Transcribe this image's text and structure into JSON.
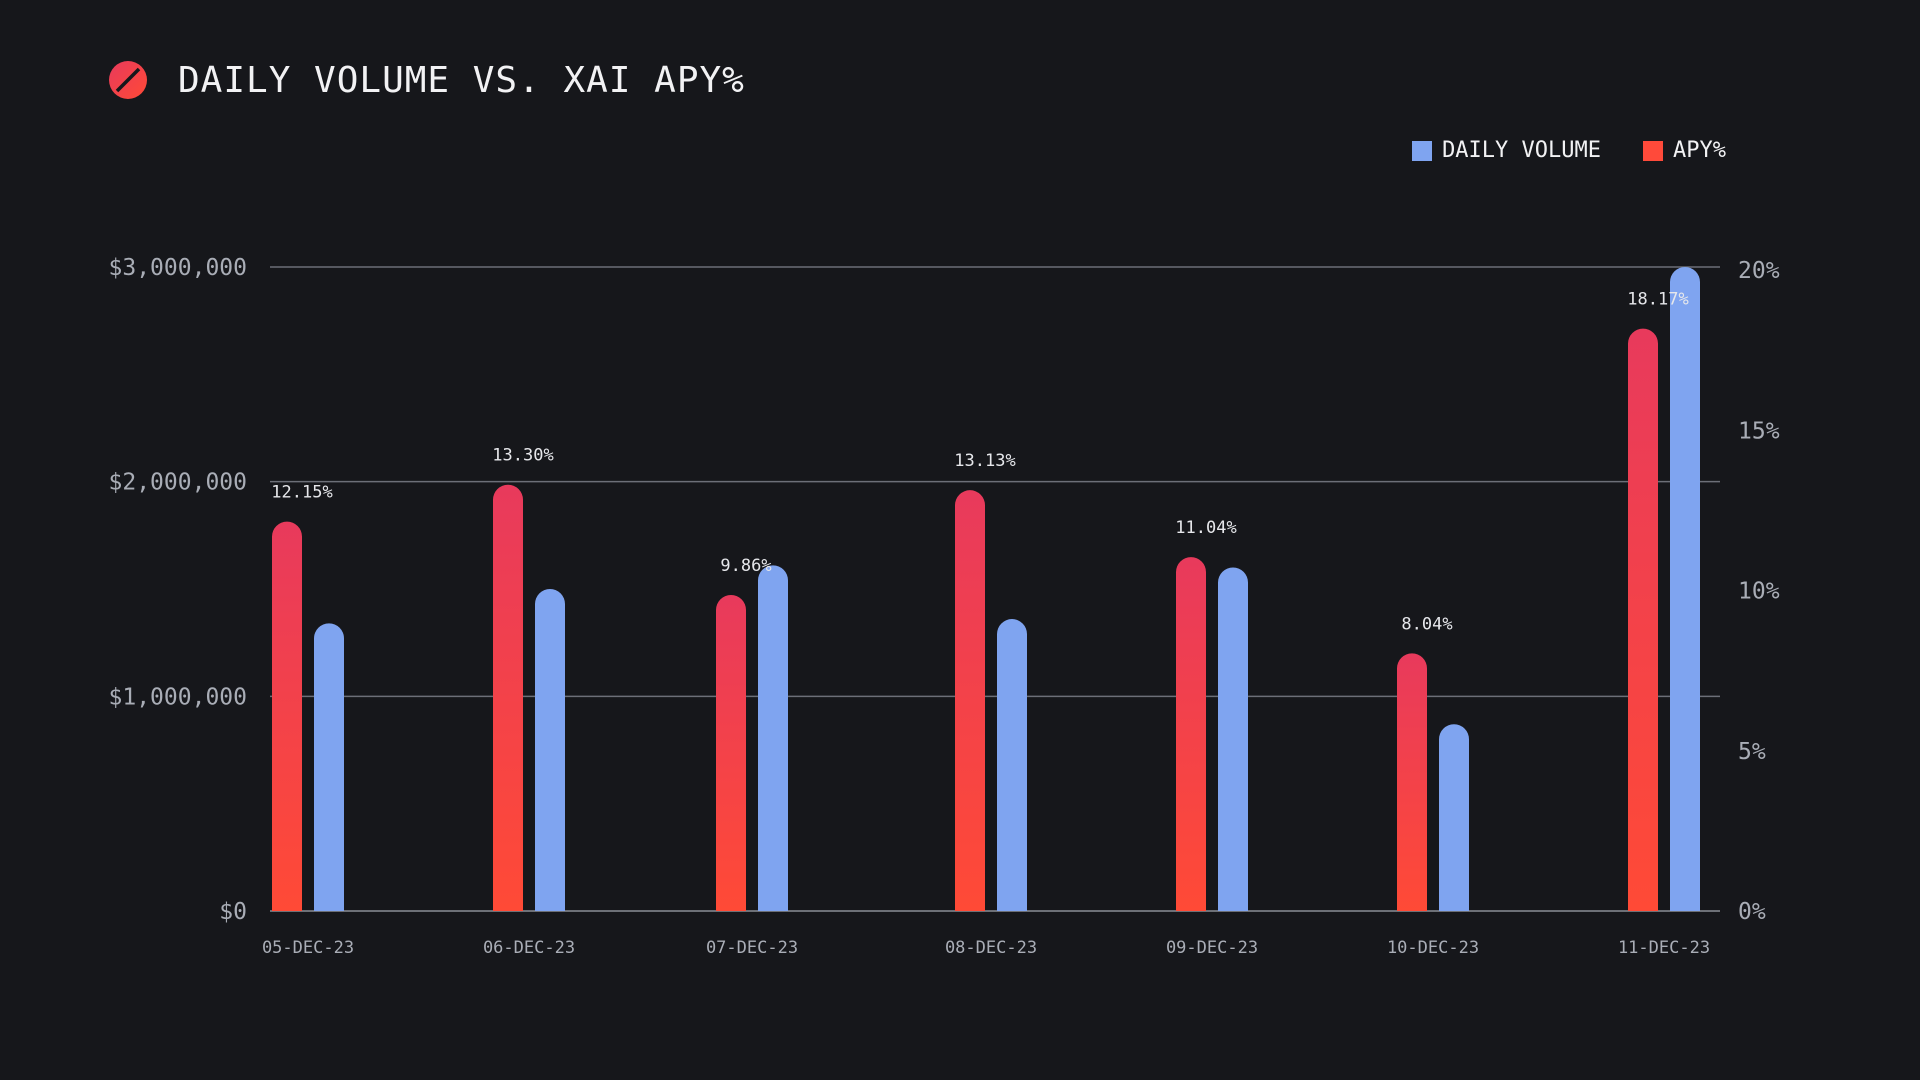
{
  "header": {
    "title": "DAILY VOLUME VS. XAI APY%",
    "logo_icon": "brand-logo-icon"
  },
  "legend": {
    "items": [
      {
        "label": "DAILY VOLUME",
        "color": "#7fa4f0"
      },
      {
        "label": "APY%",
        "color": "#ff4a3a"
      }
    ]
  },
  "chart_data": {
    "type": "bar",
    "title": "DAILY VOLUME VS. XAI APY%",
    "categories": [
      "05-DEC-23",
      "06-DEC-23",
      "07-DEC-23",
      "08-DEC-23",
      "09-DEC-23",
      "10-DEC-23",
      "11-DEC-23"
    ],
    "series": [
      {
        "name": "APY%",
        "axis": "right",
        "values": [
          12.15,
          13.3,
          9.86,
          13.13,
          11.04,
          8.04,
          18.17
        ],
        "labels": [
          "12.15%",
          "13.30%",
          "9.86%",
          "13.13%",
          "11.04%",
          "8.04%",
          "18.17%"
        ],
        "color_top": "#e83a5c",
        "color_bottom": "#ff4a36"
      },
      {
        "name": "DAILY VOLUME",
        "axis": "left",
        "values": [
          1340000,
          1500000,
          1610000,
          1360000,
          1600000,
          870000,
          3000000
        ],
        "color": "#7fa4f0"
      }
    ],
    "left_axis": {
      "min": 0,
      "max": 3000000,
      "ticks": [
        0,
        1000000,
        2000000,
        3000000
      ],
      "tick_labels": [
        "$0",
        "$1,000,000",
        "$2,000,000",
        "$3,000,000"
      ]
    },
    "right_axis": {
      "min": 0,
      "max": 20,
      "ticks": [
        0,
        5,
        10,
        15,
        20
      ],
      "tick_labels": [
        "0%",
        "5%",
        "10%",
        "15%",
        "20%"
      ]
    },
    "grid": true,
    "legend_position": "top-right"
  }
}
